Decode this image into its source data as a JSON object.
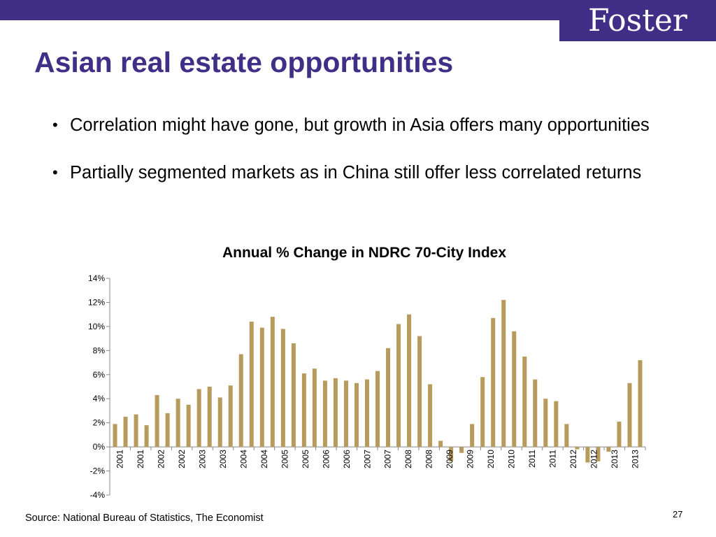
{
  "header": {
    "logo": "Foster",
    "title": "Asian real estate opportunities"
  },
  "bullets": [
    {
      "text": "Correlation might have gone, but growth in Asia offers many opportunities"
    },
    {
      "text": "Partially segmented markets as in China still offer less correlated returns"
    }
  ],
  "chart_data": {
    "type": "bar",
    "title": "Annual % Change in NDRC 70-City Index",
    "xlabel": "",
    "ylabel": "",
    "ylim": [
      -4,
      14
    ],
    "yticks": [
      "14%",
      "12%",
      "10%",
      "8%",
      "6%",
      "4%",
      "2%",
      "0%",
      "-2%",
      "-4%"
    ],
    "x_tick_labels": [
      "2001",
      "2001",
      "2002",
      "2002",
      "2003",
      "2003",
      "2004",
      "2004",
      "2005",
      "2005",
      "2006",
      "2006",
      "2007",
      "2007",
      "2008",
      "2008",
      "2009",
      "2009",
      "2010",
      "2010",
      "2011",
      "2011",
      "2012",
      "2012",
      "2013",
      "2013"
    ],
    "values": [
      1.9,
      2.5,
      2.7,
      1.8,
      4.3,
      2.8,
      4.0,
      3.5,
      4.8,
      5.0,
      4.1,
      5.1,
      7.7,
      10.4,
      9.9,
      10.8,
      9.8,
      8.6,
      6.1,
      6.5,
      5.5,
      5.7,
      5.5,
      5.3,
      5.6,
      6.3,
      8.2,
      10.2,
      11.0,
      9.2,
      5.2,
      0.5,
      -1.2,
      -0.5,
      1.9,
      5.8,
      10.7,
      12.2,
      9.6,
      7.5,
      5.6,
      4.0,
      3.8,
      1.9,
      -0.2,
      -1.3,
      -1.2,
      -0.4,
      2.1,
      5.3,
      7.2
    ],
    "bar_color": "#b79b5d",
    "grid": false,
    "legend": "none"
  },
  "footer": {
    "source": "Source: National Bureau of Statistics, The Economist",
    "page_number": "27"
  }
}
